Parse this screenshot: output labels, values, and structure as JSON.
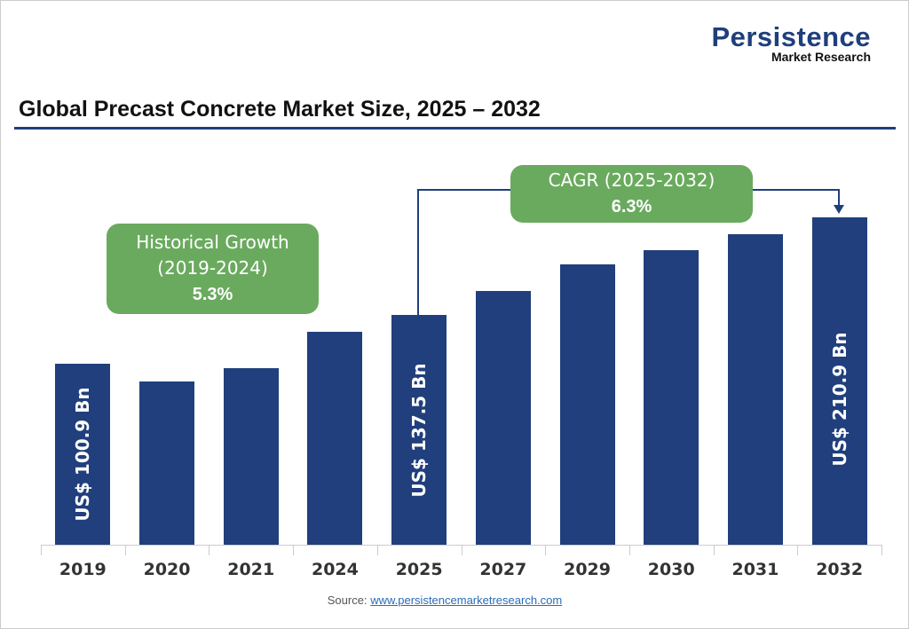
{
  "logo": {
    "line1": "Persistence",
    "line2": "Market Research"
  },
  "chart_data": {
    "type": "bar",
    "title": "Global Precast Concrete Market Size, 2025 – 2032",
    "categories": [
      "2019",
      "2020",
      "2021",
      "2024",
      "2025",
      "2027",
      "2029",
      "2030",
      "2031",
      "2032"
    ],
    "values": [
      100.9,
      88,
      98,
      125,
      137.5,
      155.4,
      175.6,
      186.6,
      198.4,
      210.9
    ],
    "data_labels": {
      "0": "US$ 100.9 Bn",
      "4": "US$ 137.5 Bn",
      "9": "US$ 210.9 Bn"
    },
    "bar_color": "#203f7c",
    "grid": false,
    "annotations": {
      "historical": {
        "line1": "Historical Growth",
        "line2": "(2019-2024)",
        "value": "5.3%"
      },
      "cagr": {
        "line1": "CAGR (2025-2032)",
        "value": "6.3%"
      }
    },
    "callout_color": "#6aaa5e"
  },
  "source": {
    "label": "Source:",
    "link": "www.persistencemarketresearch.com"
  }
}
